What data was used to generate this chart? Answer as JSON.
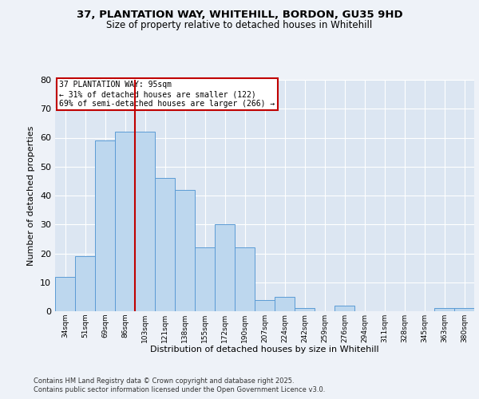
{
  "title1": "37, PLANTATION WAY, WHITEHILL, BORDON, GU35 9HD",
  "title2": "Size of property relative to detached houses in Whitehill",
  "xlabel": "Distribution of detached houses by size in Whitehill",
  "ylabel": "Number of detached properties",
  "categories": [
    "34sqm",
    "51sqm",
    "69sqm",
    "86sqm",
    "103sqm",
    "121sqm",
    "138sqm",
    "155sqm",
    "172sqm",
    "190sqm",
    "207sqm",
    "224sqm",
    "242sqm",
    "259sqm",
    "276sqm",
    "294sqm",
    "311sqm",
    "328sqm",
    "345sqm",
    "363sqm",
    "380sqm"
  ],
  "values": [
    12,
    19,
    59,
    62,
    62,
    46,
    42,
    22,
    30,
    22,
    4,
    5,
    1,
    0,
    2,
    0,
    0,
    0,
    0,
    1,
    1
  ],
  "bar_color": "#bdd7ee",
  "bar_edge_color": "#5b9bd5",
  "vline_x": 3.5,
  "vline_color": "#c00000",
  "annotation_line1": "37 PLANTATION WAY: 95sqm",
  "annotation_line2": "← 31% of detached houses are smaller (122)",
  "annotation_line3": "69% of semi-detached houses are larger (266) →",
  "annotation_box_color": "white",
  "annotation_box_edge_color": "#c00000",
  "ylim": [
    0,
    80
  ],
  "yticks": [
    0,
    10,
    20,
    30,
    40,
    50,
    60,
    70,
    80
  ],
  "footer1": "Contains HM Land Registry data © Crown copyright and database right 2025.",
  "footer2": "Contains public sector information licensed under the Open Government Licence v3.0.",
  "bg_color": "#eef2f8",
  "plot_bg_color": "#dce6f2"
}
